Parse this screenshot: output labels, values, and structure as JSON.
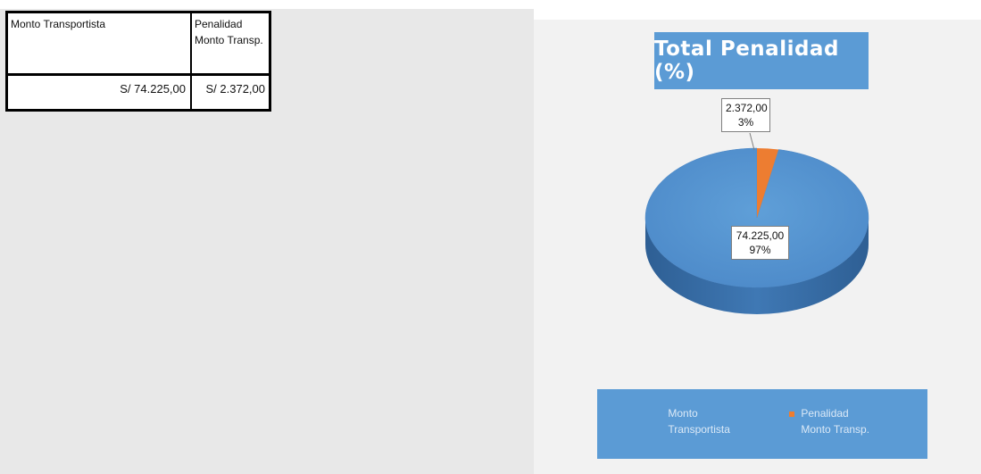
{
  "table": {
    "headers": [
      "Monto Transportista",
      "Penalidad Monto Transp."
    ],
    "values": [
      "S/ 74.225,00",
      "S/ 2.372,00"
    ]
  },
  "chart_data": {
    "type": "pie",
    "title": "Total Penalidad (%)",
    "categories": [
      "Monto Transportista",
      "Penalidad Monto Transp."
    ],
    "values": [
      74225.0,
      2372.0
    ],
    "percentages": [
      97,
      3
    ],
    "data_labels": [
      {
        "value": "74.225,00",
        "percent": "97%"
      },
      {
        "value": "2.372,00",
        "percent": "3%"
      }
    ],
    "colors": {
      "monto": "#5b9bd5",
      "penalidad": "#ed7d31",
      "panel": "#f2f2f2",
      "title_bg": "#5b9bd5"
    },
    "legend_position": "bottom",
    "legend": [
      {
        "line1": "Monto",
        "line2": "Transportista"
      },
      {
        "line1": "Penalidad",
        "line2": "Monto Transp."
      }
    ]
  }
}
